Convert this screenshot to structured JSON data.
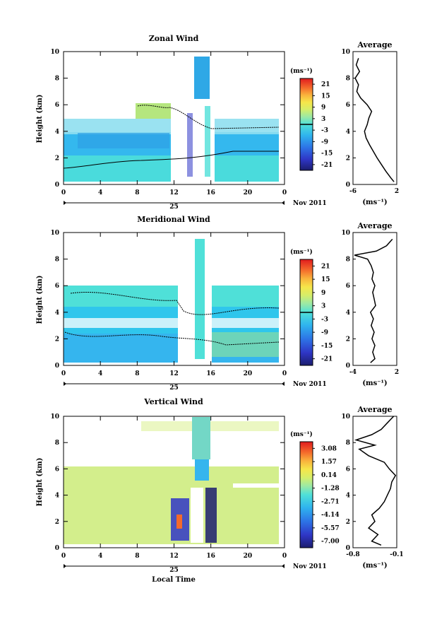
{
  "chart_data": [
    {
      "type": "heatmap",
      "title": "Zonal Wind",
      "ylabel": "Height (km)",
      "xticks": [
        "0",
        "4",
        "8",
        "12",
        "16",
        "20",
        "0"
      ],
      "yticks": [
        "0",
        "2",
        "4",
        "6",
        "8",
        "10"
      ],
      "xlim": [
        0,
        24
      ],
      "ylim": [
        0,
        10
      ],
      "date_day": "25",
      "date_label": "Nov 2011",
      "xlabel": "",
      "colorbar": {
        "unit": "(ms⁻¹)",
        "ticks": [
          "21",
          "15",
          "9",
          "3",
          "-3",
          "-9",
          "-15",
          "-21"
        ],
        "range": [
          -24,
          24
        ],
        "zero_line": 0
      },
      "data_extent": {
        "time": [
          0,
          24
        ],
        "height": [
          0.2,
          9.6
        ]
      },
      "average": {
        "title": "Average",
        "xlabel": "(ms⁻¹)",
        "xticks": [
          "-6",
          "2"
        ],
        "xlim": [
          -6,
          2
        ],
        "height": [
          0.2,
          0.5,
          1.0,
          1.5,
          2.0,
          2.5,
          3.0,
          3.5,
          4.0,
          4.5,
          5.0,
          5.5,
          6.0,
          6.5,
          7.0,
          7.5,
          8.0,
          8.5,
          9.0,
          9.5
        ],
        "value": [
          1.5,
          0.9,
          0.0,
          -0.8,
          -1.6,
          -2.3,
          -3.0,
          -3.6,
          -3.9,
          -3.4,
          -3.1,
          -2.6,
          -3.4,
          -4.6,
          -5.3,
          -5.0,
          -5.6,
          -4.8,
          -5.4,
          -5.0
        ]
      }
    },
    {
      "type": "heatmap",
      "title": "Meridional Wind",
      "ylabel": "Height (km)",
      "xticks": [
        "0",
        "4",
        "8",
        "12",
        "16",
        "20",
        "0"
      ],
      "yticks": [
        "0",
        "2",
        "4",
        "6",
        "8",
        "10"
      ],
      "xlim": [
        0,
        24
      ],
      "ylim": [
        0,
        10
      ],
      "date_day": "25",
      "date_label": "Nov 2011",
      "xlabel": "",
      "colorbar": {
        "unit": "(ms⁻¹)",
        "ticks": [
          "21",
          "15",
          "9",
          "3",
          "-3",
          "-9",
          "-15",
          "-21"
        ],
        "range": [
          -24,
          24
        ],
        "zero_line": 0
      },
      "data_extent": {
        "time": [
          0,
          24
        ],
        "height": [
          0.2,
          9.6
        ]
      },
      "average": {
        "title": "Average",
        "xlabel": "(ms⁻¹)",
        "xticks": [
          "-4",
          "2"
        ],
        "xlim": [
          -4,
          2
        ],
        "height": [
          0.2,
          0.5,
          1.0,
          1.5,
          2.0,
          2.5,
          3.0,
          3.5,
          4.0,
          4.5,
          5.0,
          5.5,
          6.0,
          6.5,
          7.0,
          7.5,
          8.0,
          8.3,
          8.6,
          9.0,
          9.5
        ],
        "value": [
          -1.6,
          -1.0,
          -1.3,
          -1.0,
          -1.4,
          -1.1,
          -1.5,
          -1.2,
          -1.6,
          -0.9,
          -1.1,
          -1.3,
          -1.0,
          -1.4,
          -1.2,
          -1.5,
          -2.0,
          -3.8,
          -0.8,
          0.6,
          1.4
        ]
      }
    },
    {
      "type": "heatmap",
      "title": "Vertical Wind",
      "ylabel": "Height (km)",
      "xticks": [
        "0",
        "4",
        "8",
        "12",
        "16",
        "20",
        "0"
      ],
      "yticks": [
        "0",
        "2",
        "4",
        "6",
        "8",
        "10"
      ],
      "xlim": [
        0,
        24
      ],
      "ylim": [
        0,
        10
      ],
      "date_day": "25",
      "date_label": "Nov 2011",
      "xlabel": "Local Time",
      "colorbar": {
        "unit": "(ms⁻¹)",
        "ticks": [
          "3.08",
          "1.57",
          "0.14",
          "-1.28",
          "-2.71",
          "-4.14",
          "-5.57",
          "-7.00"
        ],
        "range": [
          -7.7,
          3.8
        ]
      },
      "data_extent": {
        "time": [
          0,
          24
        ],
        "height": [
          0.2,
          10.0
        ]
      },
      "average": {
        "title": "Average",
        "xlabel": "(ms⁻¹)",
        "xticks": [
          "-0.8",
          "-0.1"
        ],
        "xlim": [
          -0.8,
          -0.1
        ],
        "height": [
          0.2,
          0.5,
          1.0,
          1.5,
          2.0,
          2.5,
          3.0,
          3.5,
          4.0,
          4.5,
          5.0,
          5.5,
          6.0,
          6.5,
          7.0,
          7.5,
          7.8,
          8.2,
          8.6,
          9.0,
          9.5,
          10.0
        ],
        "value": [
          -0.35,
          -0.5,
          -0.4,
          -0.55,
          -0.45,
          -0.5,
          -0.38,
          -0.3,
          -0.25,
          -0.2,
          -0.18,
          -0.12,
          -0.22,
          -0.3,
          -0.55,
          -0.7,
          -0.45,
          -0.75,
          -0.5,
          -0.35,
          -0.25,
          -0.15
        ]
      }
    }
  ]
}
